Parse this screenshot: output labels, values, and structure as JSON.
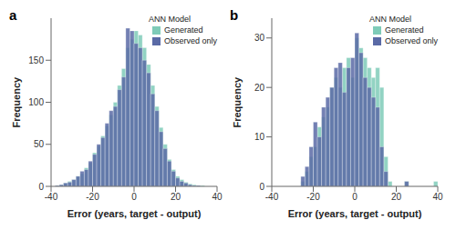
{
  "chart_data": [
    {
      "type": "histogram",
      "title": "a",
      "legend_title": "ANN Model",
      "legend": "top-right",
      "grid": false,
      "x_label": "Error (years, target - output)",
      "y_label": "Frequency",
      "xlim": [
        -40,
        40
      ],
      "xticks": [
        -40,
        -20,
        0,
        20,
        40
      ],
      "ylim": [
        0,
        200
      ],
      "yticks": [
        0,
        50,
        100,
        150
      ],
      "bins": [
        -40,
        -38,
        -36,
        -34,
        -32,
        -30,
        -28,
        -26,
        -24,
        -22,
        -20,
        -18,
        -16,
        -14,
        -12,
        -10,
        -8,
        -6,
        -4,
        -2,
        0,
        2,
        4,
        6,
        8,
        10,
        12,
        14,
        16,
        18,
        20,
        22,
        24,
        26,
        28,
        30,
        32,
        34,
        36,
        38,
        40
      ],
      "series": [
        {
          "name": "Generated",
          "color": "#7fcbb8",
          "values": [
            0,
            1,
            2,
            4,
            6,
            8,
            12,
            15,
            22,
            28,
            40,
            48,
            60,
            72,
            85,
            100,
            120,
            140,
            165,
            175,
            185,
            180,
            165,
            145,
            120,
            95,
            70,
            50,
            32,
            20,
            12,
            8,
            5,
            3,
            2,
            1,
            1,
            0,
            0,
            0
          ]
        },
        {
          "name": "Observed only",
          "color": "#5a6aa6",
          "values": [
            0,
            1,
            2,
            4,
            5,
            8,
            12,
            18,
            20,
            30,
            38,
            50,
            58,
            75,
            90,
            95,
            115,
            130,
            188,
            185,
            170,
            165,
            150,
            135,
            110,
            90,
            65,
            45,
            30,
            18,
            10,
            6,
            4,
            2,
            1,
            1,
            0,
            0,
            0,
            0
          ]
        }
      ]
    },
    {
      "type": "histogram",
      "title": "b",
      "legend_title": "ANN Model",
      "legend": "top-right",
      "grid": false,
      "x_label": "Error (years, target - output)",
      "y_label": "Frequency",
      "xlim": [
        -40,
        40
      ],
      "xticks": [
        -40,
        -20,
        0,
        20,
        40
      ],
      "ylim": [
        0,
        34
      ],
      "yticks": [
        0,
        10,
        20,
        30
      ],
      "bins": [
        -40,
        -38,
        -36,
        -34,
        -32,
        -30,
        -28,
        -26,
        -24,
        -22,
        -20,
        -18,
        -16,
        -14,
        -12,
        -10,
        -8,
        -6,
        -4,
        -2,
        0,
        2,
        4,
        6,
        8,
        10,
        12,
        14,
        16,
        18,
        20,
        22,
        24,
        26,
        28,
        30,
        32,
        34,
        36,
        38,
        40
      ],
      "series": [
        {
          "name": "Generated",
          "color": "#7fcbb8",
          "values": [
            0,
            0,
            0,
            0,
            0,
            0,
            0,
            1,
            3,
            6,
            8,
            12,
            14,
            16,
            20,
            22,
            20,
            24,
            26,
            22,
            30,
            28,
            26,
            24,
            22,
            24,
            20,
            6,
            1,
            0,
            0,
            0,
            1,
            0,
            0,
            0,
            0,
            0,
            0,
            1
          ]
        },
        {
          "name": "Observed only",
          "color": "#5a6aa6",
          "values": [
            0,
            0,
            0,
            0,
            0,
            0,
            0,
            2,
            4,
            8,
            13,
            10,
            16,
            18,
            20,
            24,
            25,
            19,
            24,
            26,
            31,
            27,
            22,
            20,
            18,
            16,
            8,
            3,
            0,
            0,
            0,
            0,
            1,
            0,
            0,
            0,
            0,
            0,
            0,
            0
          ]
        }
      ]
    }
  ]
}
